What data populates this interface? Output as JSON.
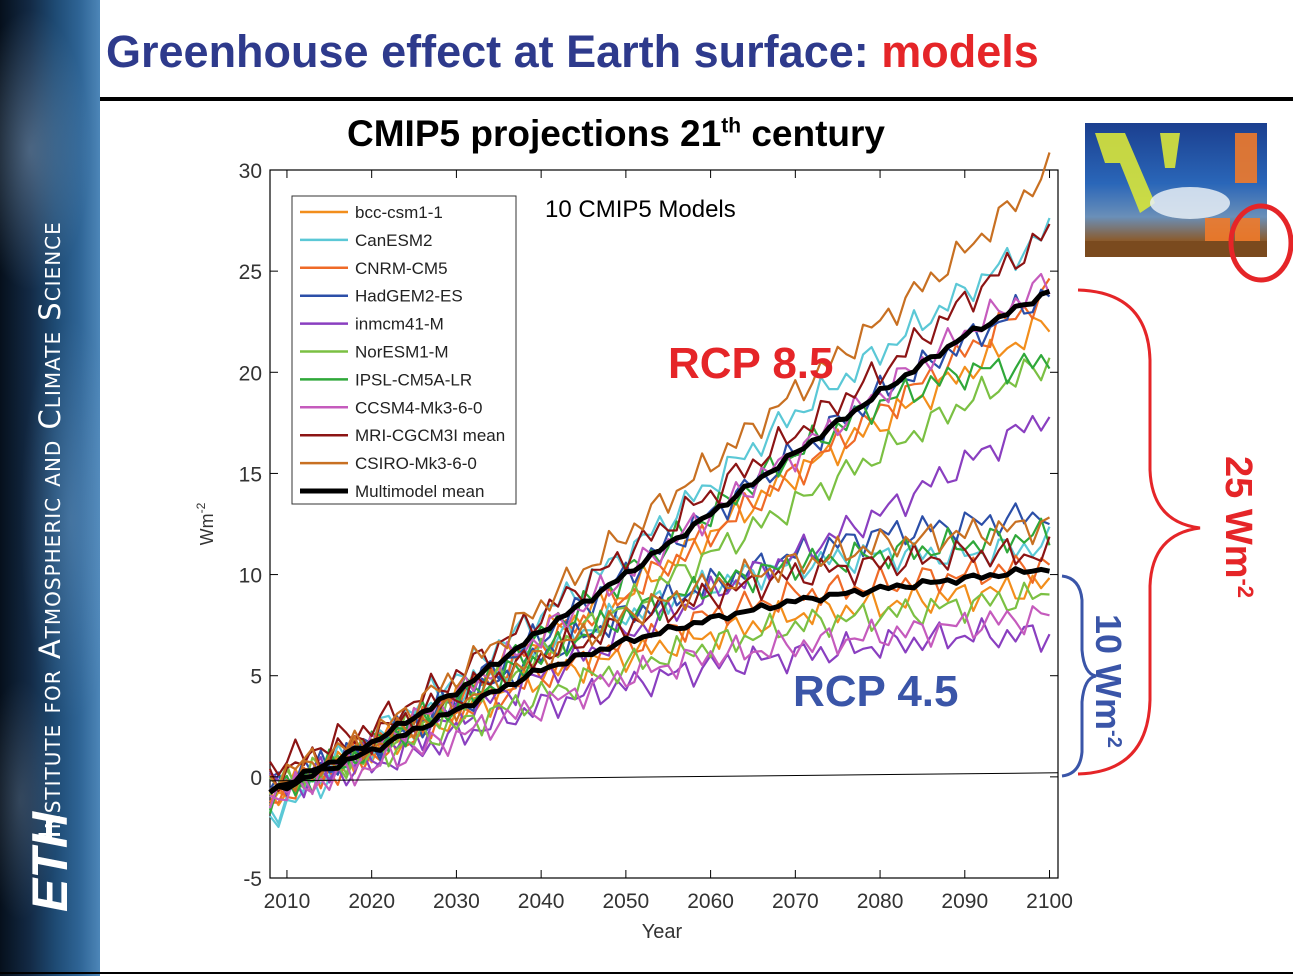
{
  "sidebar": {
    "institute": "Institute for Atmospheric and Climate Science",
    "logo": "ETH"
  },
  "slide": {
    "title_main": "Greenhouse effect at Earth surface: ",
    "title_highlight": "models"
  },
  "chart_data": {
    "type": "line",
    "title_main": "CMIP5 projections 21",
    "title_sup": "th",
    "title_rest": " century",
    "xlabel": "Year",
    "ylabel": "Wm",
    "ylabel_sup": "-2",
    "xlim": [
      2008,
      2101
    ],
    "ylim": [
      -5,
      30
    ],
    "xticks": [
      2010,
      2020,
      2030,
      2040,
      2050,
      2060,
      2070,
      2080,
      2090,
      2100
    ],
    "yticks": [
      -5,
      0,
      5,
      10,
      15,
      20,
      25,
      30
    ],
    "grid": false,
    "legend_position": "top-left",
    "annotation_models": "10 CMIP5 Models",
    "series": [
      {
        "name": "bcc-csm1-1",
        "color": "#f28e1c",
        "rcp85": [
          [
            2008,
            -1.2
          ],
          [
            2020,
            1.5
          ],
          [
            2030,
            4
          ],
          [
            2040,
            7
          ],
          [
            2050,
            9
          ],
          [
            2060,
            12
          ],
          [
            2070,
            15
          ],
          [
            2080,
            17.5
          ],
          [
            2090,
            20
          ],
          [
            2100,
            22.5
          ]
        ],
        "rcp45": [
          [
            2008,
            -1
          ],
          [
            2020,
            1.2
          ],
          [
            2030,
            3
          ],
          [
            2040,
            5
          ],
          [
            2050,
            6
          ],
          [
            2060,
            7
          ],
          [
            2070,
            8
          ],
          [
            2080,
            8.5
          ],
          [
            2090,
            9
          ],
          [
            2100,
            9.5
          ]
        ]
      },
      {
        "name": "CanESM2",
        "color": "#5bc8d6",
        "rcp85": [
          [
            2008,
            -1.8
          ],
          [
            2020,
            2
          ],
          [
            2030,
            5
          ],
          [
            2040,
            8
          ],
          [
            2050,
            11
          ],
          [
            2060,
            14.5
          ],
          [
            2070,
            18
          ],
          [
            2080,
            21
          ],
          [
            2090,
            24
          ],
          [
            2100,
            27
          ]
        ],
        "rcp45": [
          [
            2008,
            -2
          ],
          [
            2020,
            1.5
          ],
          [
            2030,
            4
          ],
          [
            2040,
            6.5
          ],
          [
            2050,
            8
          ],
          [
            2060,
            9.5
          ],
          [
            2070,
            10.5
          ],
          [
            2080,
            11
          ],
          [
            2090,
            11
          ],
          [
            2100,
            11.5
          ]
        ]
      },
      {
        "name": "CNRM-CM5",
        "color": "#ef6a27",
        "rcp85": [
          [
            2008,
            -1
          ],
          [
            2020,
            1.5
          ],
          [
            2030,
            4
          ],
          [
            2040,
            6.5
          ],
          [
            2050,
            9
          ],
          [
            2060,
            12
          ],
          [
            2070,
            15
          ],
          [
            2080,
            18
          ],
          [
            2090,
            21
          ],
          [
            2100,
            24
          ]
        ],
        "rcp45": [
          [
            2008,
            -1
          ],
          [
            2020,
            1
          ],
          [
            2030,
            3
          ],
          [
            2040,
            5
          ],
          [
            2050,
            6.5
          ],
          [
            2060,
            8
          ],
          [
            2070,
            9
          ],
          [
            2080,
            9.5
          ],
          [
            2090,
            10
          ],
          [
            2100,
            10.5
          ]
        ]
      },
      {
        "name": "HadGEM2-ES",
        "color": "#2c4fa8",
        "rcp85": [
          [
            2008,
            -0.5
          ],
          [
            2020,
            1.5
          ],
          [
            2030,
            4
          ],
          [
            2040,
            7
          ],
          [
            2050,
            10
          ],
          [
            2060,
            13
          ],
          [
            2070,
            16
          ],
          [
            2080,
            19
          ],
          [
            2090,
            21.5
          ],
          [
            2100,
            24
          ]
        ],
        "rcp45": [
          [
            2008,
            -0.5
          ],
          [
            2020,
            1.5
          ],
          [
            2030,
            3.5
          ],
          [
            2040,
            6
          ],
          [
            2050,
            8
          ],
          [
            2060,
            9.5
          ],
          [
            2070,
            11
          ],
          [
            2080,
            12
          ],
          [
            2090,
            12.5
          ],
          [
            2100,
            13
          ]
        ]
      },
      {
        "name": "inmcm41-M",
        "color": "#8a3fc0",
        "rcp85": [
          [
            2008,
            -0.5
          ],
          [
            2020,
            1
          ],
          [
            2030,
            3
          ],
          [
            2040,
            5
          ],
          [
            2050,
            7
          ],
          [
            2060,
            9
          ],
          [
            2070,
            11
          ],
          [
            2080,
            13
          ],
          [
            2090,
            15.5
          ],
          [
            2100,
            18
          ]
        ],
        "rcp45": [
          [
            2008,
            -0.5
          ],
          [
            2020,
            0.5
          ],
          [
            2030,
            2
          ],
          [
            2040,
            3.5
          ],
          [
            2050,
            4.5
          ],
          [
            2060,
            5.5
          ],
          [
            2070,
            6
          ],
          [
            2080,
            6.5
          ],
          [
            2090,
            7
          ],
          [
            2100,
            7
          ]
        ]
      },
      {
        "name": "NorESM1-M",
        "color": "#7bc043",
        "rcp85": [
          [
            2008,
            -0.5
          ],
          [
            2020,
            1.5
          ],
          [
            2030,
            3.5
          ],
          [
            2040,
            6
          ],
          [
            2050,
            8.5
          ],
          [
            2060,
            11
          ],
          [
            2070,
            13.5
          ],
          [
            2080,
            16
          ],
          [
            2090,
            18.5
          ],
          [
            2100,
            20.5
          ]
        ],
        "rcp45": [
          [
            2008,
            -0.5
          ],
          [
            2020,
            1
          ],
          [
            2030,
            2.5
          ],
          [
            2040,
            4
          ],
          [
            2050,
            5.5
          ],
          [
            2060,
            6.5
          ],
          [
            2070,
            7.5
          ],
          [
            2080,
            8
          ],
          [
            2090,
            8.5
          ],
          [
            2100,
            9
          ]
        ]
      },
      {
        "name": "IPSL-CM5A-LR",
        "color": "#2fa83a",
        "rcp85": [
          [
            2008,
            -1
          ],
          [
            2020,
            1.5
          ],
          [
            2030,
            4
          ],
          [
            2040,
            7
          ],
          [
            2050,
            10
          ],
          [
            2060,
            13
          ],
          [
            2070,
            16
          ],
          [
            2080,
            18.5
          ],
          [
            2090,
            20
          ],
          [
            2100,
            20.5
          ]
        ],
        "rcp45": [
          [
            2008,
            -1
          ],
          [
            2020,
            1.5
          ],
          [
            2030,
            3.5
          ],
          [
            2040,
            6
          ],
          [
            2050,
            8
          ],
          [
            2060,
            9.5
          ],
          [
            2070,
            10.5
          ],
          [
            2080,
            11
          ],
          [
            2090,
            11.5
          ],
          [
            2100,
            12
          ]
        ]
      },
      {
        "name": "CCSM4-Mk3-6-0",
        "color": "#c55bbd",
        "rcp85": [
          [
            2008,
            -1
          ],
          [
            2020,
            1.5
          ],
          [
            2030,
            4
          ],
          [
            2040,
            7
          ],
          [
            2050,
            10
          ],
          [
            2060,
            13
          ],
          [
            2070,
            16
          ],
          [
            2080,
            19
          ],
          [
            2090,
            22
          ],
          [
            2100,
            24.5
          ]
        ],
        "rcp45": [
          [
            2008,
            -1
          ],
          [
            2020,
            0.5
          ],
          [
            2030,
            2
          ],
          [
            2040,
            3.5
          ],
          [
            2050,
            5
          ],
          [
            2060,
            6
          ],
          [
            2070,
            6.5
          ],
          [
            2080,
            7
          ],
          [
            2090,
            7.5
          ],
          [
            2100,
            8
          ]
        ]
      },
      {
        "name": "MRI-CGCM3I mean",
        "color": "#8c1414",
        "rcp85": [
          [
            2008,
            0.5
          ],
          [
            2020,
            2.5
          ],
          [
            2030,
            5
          ],
          [
            2040,
            8
          ],
          [
            2050,
            11
          ],
          [
            2060,
            14
          ],
          [
            2070,
            17
          ],
          [
            2080,
            20
          ],
          [
            2090,
            23.5
          ],
          [
            2100,
            27
          ]
        ],
        "rcp45": [
          [
            2008,
            0
          ],
          [
            2020,
            2
          ],
          [
            2030,
            4
          ],
          [
            2040,
            6
          ],
          [
            2050,
            7.5
          ],
          [
            2060,
            9
          ],
          [
            2070,
            10
          ],
          [
            2080,
            10.5
          ],
          [
            2090,
            11
          ],
          [
            2100,
            11
          ]
        ]
      },
      {
        "name": "CSIRO-Mk3-6-0",
        "color": "#c87022",
        "rcp85": [
          [
            2008,
            0
          ],
          [
            2020,
            2
          ],
          [
            2030,
            5
          ],
          [
            2040,
            8.5
          ],
          [
            2050,
            12
          ],
          [
            2060,
            15.5
          ],
          [
            2070,
            19
          ],
          [
            2080,
            22.5
          ],
          [
            2090,
            26
          ],
          [
            2100,
            30
          ]
        ],
        "rcp45": [
          [
            2008,
            -0.5
          ],
          [
            2020,
            1.5
          ],
          [
            2030,
            3.5
          ],
          [
            2040,
            6
          ],
          [
            2050,
            8
          ],
          [
            2060,
            9.5
          ],
          [
            2070,
            10.5
          ],
          [
            2080,
            11.5
          ],
          [
            2090,
            12
          ],
          [
            2100,
            12.5
          ]
        ]
      },
      {
        "name": "Multimodel mean",
        "color": "#000000",
        "rcp85": [
          [
            2008,
            -0.7
          ],
          [
            2020,
            1.7
          ],
          [
            2030,
            4.2
          ],
          [
            2040,
            7.2
          ],
          [
            2050,
            10
          ],
          [
            2060,
            13
          ],
          [
            2070,
            16
          ],
          [
            2080,
            19
          ],
          [
            2090,
            21.8
          ],
          [
            2100,
            24
          ]
        ],
        "rcp45": [
          [
            2008,
            -0.8
          ],
          [
            2020,
            1.3
          ],
          [
            2030,
            3.3
          ],
          [
            2040,
            5.3
          ],
          [
            2050,
            6.7
          ],
          [
            2060,
            7.8
          ],
          [
            2070,
            8.7
          ],
          [
            2080,
            9.3
          ],
          [
            2090,
            9.8
          ],
          [
            2100,
            10.3
          ]
        ]
      }
    ]
  },
  "annotations": {
    "rcp85": "RCP 8.5",
    "rcp45": "RCP 4.5",
    "brace_large": "25 Wm",
    "brace_large_sup": "-2",
    "brace_small": "10 Wm",
    "brace_small_sup": "-2"
  },
  "colors": {
    "title_blue": "#2e3a8c",
    "title_red": "#e52528",
    "rcp85_red": "#e52528",
    "rcp45_blue": "#3a55a8",
    "brace_red": "#e52528",
    "brace_blue": "#3a55a8"
  }
}
